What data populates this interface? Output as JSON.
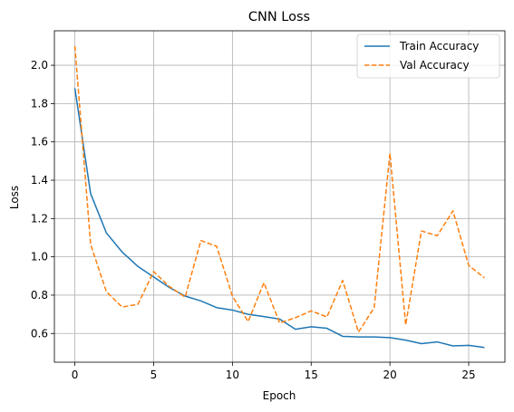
{
  "chart_data": {
    "type": "line",
    "title": "CNN Loss",
    "xlabel": "Epoch",
    "ylabel": "Loss",
    "xlim": [
      -1.3,
      27.3
    ],
    "ylim": [
      0.45,
      2.18
    ],
    "xticks": [
      0,
      5,
      10,
      15,
      20,
      25
    ],
    "yticks": [
      0.6,
      0.8,
      1.0,
      1.2,
      1.4,
      1.6,
      1.8,
      2.0
    ],
    "ytick_labels": [
      "0.6",
      "0.8",
      "1.0",
      "1.2",
      "1.4",
      "1.6",
      "1.8",
      "2.0"
    ],
    "grid": true,
    "legend_position": "top-right",
    "x": [
      0,
      1,
      2,
      3,
      4,
      5,
      6,
      7,
      8,
      9,
      10,
      11,
      12,
      13,
      14,
      15,
      16,
      17,
      18,
      19,
      20,
      21,
      22,
      23,
      24,
      25,
      26
    ],
    "series": [
      {
        "name": "Train Accuracy",
        "color": "#1f77b4",
        "style": "solid",
        "values": [
          1.88,
          1.33,
          1.125,
          1.025,
          0.95,
          0.895,
          0.84,
          0.795,
          0.77,
          0.735,
          0.722,
          0.7,
          0.688,
          0.675,
          0.622,
          0.635,
          0.627,
          0.585,
          0.582,
          0.582,
          0.578,
          0.565,
          0.547,
          0.556,
          0.535,
          0.538,
          0.527
        ]
      },
      {
        "name": "Val Accuracy",
        "color": "#ff7f0e",
        "style": "dashed",
        "values": [
          2.1,
          1.065,
          0.818,
          0.738,
          0.752,
          0.923,
          0.845,
          0.79,
          1.085,
          1.055,
          0.795,
          0.662,
          0.865,
          0.655,
          0.682,
          0.718,
          0.686,
          0.877,
          0.607,
          0.735,
          1.54,
          0.645,
          1.135,
          1.11,
          1.24,
          0.955,
          0.89
        ]
      }
    ]
  }
}
